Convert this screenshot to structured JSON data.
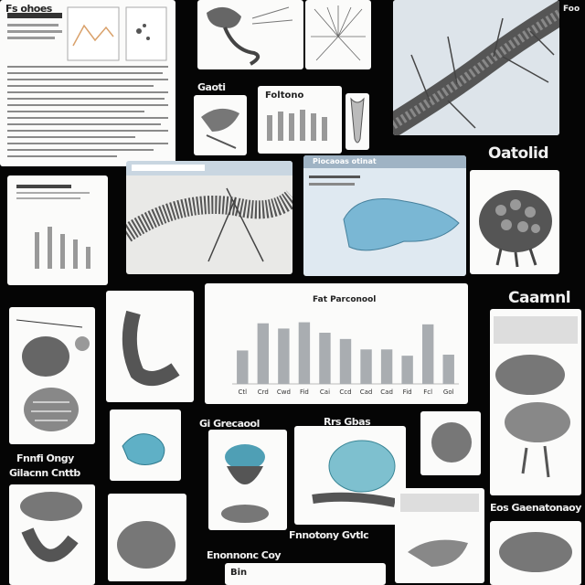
{
  "captions": {
    "top_left": "Fs ohoes",
    "mid_tile_a": "Gaoti",
    "mid_tile_b": "Foltono",
    "upper_right": "Oatolid",
    "mid_right": "Caamnl",
    "left_stack_a": "Fnnfi Ongy",
    "left_stack_b": "Gilacnn Cnttb",
    "under_small": "Gi Grecaool",
    "under_mid": "Rrs Gbas",
    "bottom_mid_a": "Fnnotony Gvtlc",
    "bottom_mid_b": "Enonnonc Coy",
    "bottom_right": "Eos Gaenatonaoy",
    "bar_chart_title": "Fat Parconool",
    "top_right_chip": "Foo",
    "mid_panel_header": "Piocaoas otinat",
    "bottom_mid_strip": "Bin"
  },
  "chart_data": {
    "type": "bar",
    "title": "Fat Parconool",
    "categories": [
      "Ctl",
      "Crd",
      "Cwd",
      "Fid",
      "Cai",
      "Ccd",
      "Cad",
      "Cad",
      "Fid",
      "Fcl",
      "Gol"
    ],
    "values": [
      32,
      58,
      53,
      59,
      49,
      43,
      33,
      33,
      27,
      57,
      28
    ],
    "ylim": [
      0,
      70
    ]
  }
}
